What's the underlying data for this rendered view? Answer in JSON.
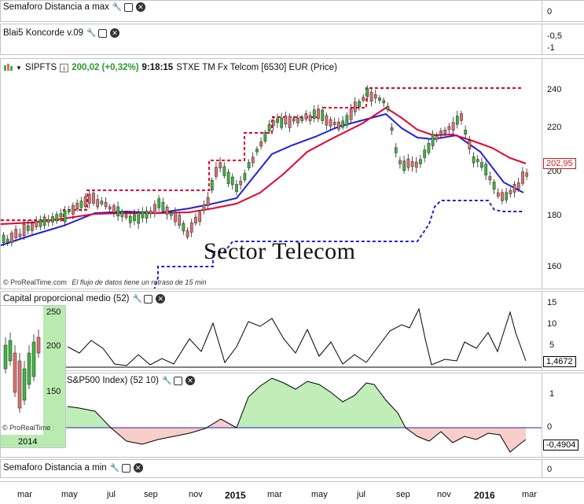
{
  "panels": {
    "semaforo_max": {
      "title": "Semaforo Distancia a max",
      "axis_label": "0"
    },
    "blai5": {
      "title": "Blai5 Koncorde v.09",
      "axis_labels": [
        "-0,5",
        "-1"
      ]
    },
    "main": {
      "symbol": "SIPFTS",
      "price": "200,02 (+0,32%)",
      "time": "9:18:15",
      "instrument": "STXE TM Fx Telcom [6530] EUR (Price)",
      "price_tag": "202,95",
      "watermark": "Sector Telecom",
      "copyright": "© ProRealTime.com",
      "delay_note": "El flujo de datos tiene un retraso de 15 min",
      "y_ticks": [
        "240",
        "220",
        "200",
        "180",
        "160"
      ]
    },
    "capital": {
      "title": "Capital proporcional medio (52)",
      "y_ticks": [
        "15",
        "10",
        "5"
      ],
      "value_tag": "1,4672"
    },
    "sp500": {
      "title": "S&P500 Index) (52 10)",
      "y_ticks": [
        "1",
        "0"
      ],
      "value_tag": "-0,4904"
    },
    "inset": {
      "y_ticks": [
        "250",
        "200",
        "150"
      ],
      "copyright": "© ProRealTime",
      "year": "2014"
    },
    "semaforo_min": {
      "title": "Semaforo Distancia a min",
      "axis_label": "0"
    }
  },
  "x_axis": [
    "mar",
    "may",
    "jul",
    "sep",
    "nov",
    "2015",
    "mar",
    "may",
    "jul",
    "sep",
    "nov",
    "2016",
    "mar"
  ],
  "colors": {
    "up": "#3fb53f",
    "down": "#e07070",
    "sma": "#e8002a",
    "ema": "#2020e0",
    "dotted_red": "#e8002a",
    "dotted_blue": "#2020e0",
    "tag": "#c81e1e"
  }
}
